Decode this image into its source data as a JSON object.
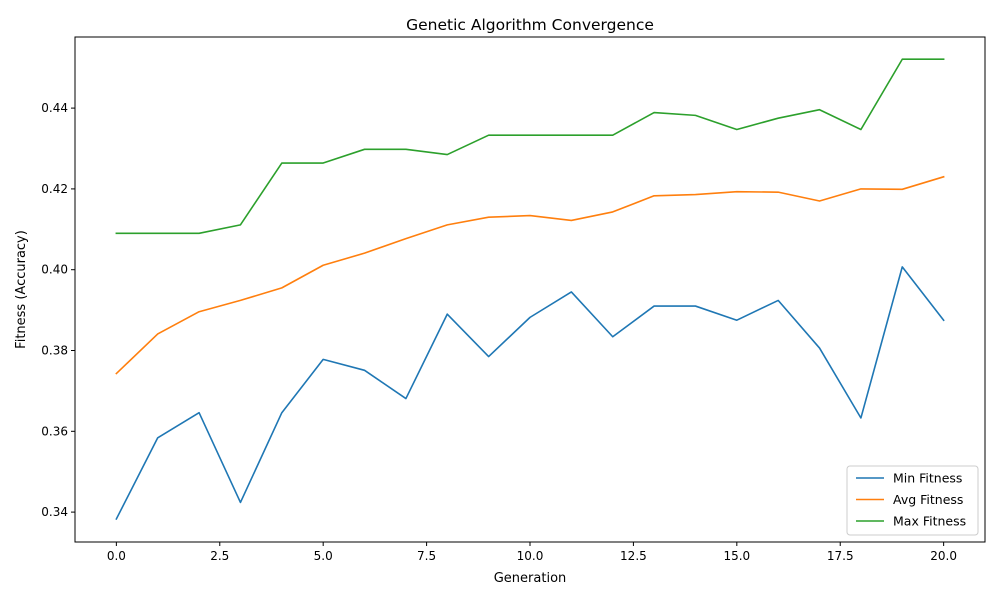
{
  "chart_data": {
    "type": "line",
    "title": "Genetic Algorithm Convergence",
    "xlabel": "Generation",
    "ylabel": "Fitness (Accuracy)",
    "xlim": [
      -1.0,
      21.0
    ],
    "ylim": [
      0.3326,
      0.4576
    ],
    "xticks": [
      0.0,
      2.5,
      5.0,
      7.5,
      10.0,
      12.5,
      15.0,
      17.5,
      20.0
    ],
    "xtick_labels": [
      "0.0",
      "2.5",
      "5.0",
      "7.5",
      "10.0",
      "12.5",
      "15.0",
      "17.5",
      "20.0"
    ],
    "yticks": [
      0.34,
      0.36,
      0.38,
      0.4,
      0.42,
      0.44
    ],
    "ytick_labels": [
      "0.34",
      "0.36",
      "0.38",
      "0.40",
      "0.42",
      "0.44"
    ],
    "grid": false,
    "legend_position": "bottom-right",
    "x": [
      0,
      1,
      2,
      3,
      4,
      5,
      6,
      7,
      8,
      9,
      10,
      11,
      12,
      13,
      14,
      15,
      16,
      17,
      18,
      19,
      20
    ],
    "series": [
      {
        "name": "Min Fitness",
        "color": "#1f77b4",
        "values": [
          0.3383,
          0.3584,
          0.3646,
          0.3424,
          0.3646,
          0.3778,
          0.3751,
          0.3681,
          0.389,
          0.3785,
          0.3882,
          0.3945,
          0.3834,
          0.391,
          0.391,
          0.3875,
          0.3924,
          0.3806,
          0.3633,
          0.4007,
          0.3875
        ]
      },
      {
        "name": "Avg Fitness",
        "color": "#ff7f0e",
        "values": [
          0.3743,
          0.3841,
          0.3896,
          0.3924,
          0.3955,
          0.4011,
          0.4041,
          0.4077,
          0.4111,
          0.413,
          0.4134,
          0.4122,
          0.4143,
          0.4183,
          0.4186,
          0.4193,
          0.4192,
          0.417,
          0.42,
          0.4199,
          0.423
        ]
      },
      {
        "name": "Max Fitness",
        "color": "#2ca02c",
        "values": [
          0.409,
          0.409,
          0.409,
          0.4111,
          0.4264,
          0.4264,
          0.4298,
          0.4298,
          0.4285,
          0.4333,
          0.4333,
          0.4333,
          0.4333,
          0.4389,
          0.4382,
          0.4347,
          0.4375,
          0.4396,
          0.4347,
          0.4521,
          0.4521
        ]
      }
    ]
  }
}
